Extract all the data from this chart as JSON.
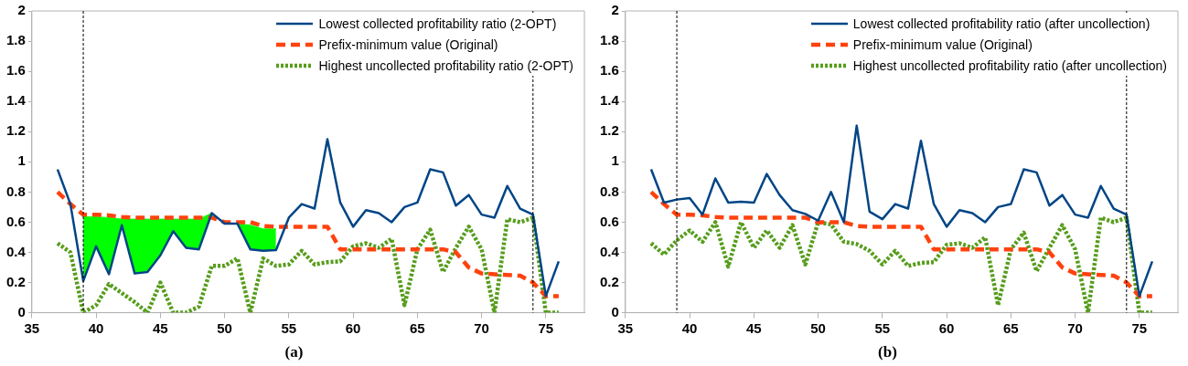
{
  "chart_data": [
    {
      "type": "line",
      "title": "(a)",
      "x": [
        37,
        38,
        39,
        40,
        41,
        42,
        43,
        44,
        45,
        46,
        47,
        48,
        49,
        50,
        51,
        52,
        53,
        54,
        55,
        56,
        57,
        58,
        59,
        60,
        61,
        62,
        63,
        64,
        65,
        66,
        67,
        68,
        69,
        70,
        71,
        72,
        73,
        74,
        75,
        76
      ],
      "xlim": [
        35,
        78
      ],
      "xticks": [
        35,
        40,
        45,
        50,
        55,
        60,
        65,
        70,
        75
      ],
      "ylim": [
        0,
        2
      ],
      "yticks": [
        0,
        0.2,
        0.4,
        0.6,
        0.8,
        1,
        1.2,
        1.4,
        1.6,
        1.8,
        2
      ],
      "grid": false,
      "legend": "top right",
      "marker": "none",
      "series": [
        {
          "type": "area",
          "color": "#00ff00",
          "x": [
            39,
            40,
            41,
            42,
            43,
            44,
            45,
            46,
            47,
            48,
            49,
            50,
            51,
            52,
            53,
            54
          ],
          "values": [
            0.635,
            0.635,
            0.63,
            0.62,
            0.62,
            0.62,
            0.62,
            0.62,
            0.62,
            0.62,
            0.66,
            null,
            0.59,
            0.58,
            0.555,
            0.555
          ]
        },
        {
          "name": "Lowest collected profitability ratio (2-OPT)",
          "color": "#004586",
          "line_style": "solid",
          "values": [
            0.95,
            0.72,
            0.21,
            0.44,
            0.255,
            0.58,
            0.26,
            0.27,
            0.38,
            0.54,
            0.43,
            0.42,
            0.66,
            0.59,
            0.59,
            0.42,
            0.41,
            0.415,
            0.63,
            0.72,
            0.69,
            1.15,
            0.73,
            0.57,
            0.68,
            0.66,
            0.6,
            0.7,
            0.73,
            0.95,
            0.93,
            0.71,
            0.78,
            0.65,
            0.63,
            0.84,
            0.69,
            0.65,
            0.11,
            0.34
          ]
        },
        {
          "name": "Prefix-minimum value (Original)",
          "color": "#ff420e",
          "line_style": "dashed",
          "values": [
            0.8,
            0.72,
            0.65,
            0.65,
            0.645,
            0.635,
            0.63,
            0.63,
            0.63,
            0.63,
            0.63,
            0.63,
            0.63,
            0.6,
            0.6,
            0.6,
            0.575,
            0.57,
            0.57,
            0.57,
            0.57,
            0.57,
            0.42,
            0.42,
            0.42,
            0.42,
            0.42,
            0.42,
            0.42,
            0.42,
            0.42,
            0.4,
            0.3,
            0.26,
            0.255,
            0.25,
            0.245,
            0.2,
            0.11,
            0.11
          ]
        },
        {
          "name": "Highest uncollected profitability ratio (2-OPT)",
          "color": "#579d1c",
          "line_style": "dotted",
          "values": [
            0.46,
            0.4,
            0,
            0.05,
            0.19,
            0.13,
            0.07,
            0,
            0.2,
            0,
            0,
            0.04,
            0.31,
            0.31,
            0.36,
            0,
            0.36,
            0.31,
            0.32,
            0.41,
            0.32,
            0.335,
            0.34,
            0.44,
            0.46,
            0.43,
            0.49,
            0.05,
            0.42,
            0.55,
            0.27,
            0.43,
            0.57,
            0.42,
            0,
            0.62,
            0.6,
            0.63,
            0,
            0
          ]
        }
      ],
      "ref_lines": [
        {
          "axis": "x",
          "value": 39,
          "color": "#000000",
          "line_style": "dotted"
        },
        {
          "axis": "x",
          "value": 74,
          "color": "#000000",
          "line_style": "dotted"
        }
      ]
    },
    {
      "type": "line",
      "title": "(b)",
      "x": [
        37,
        38,
        39,
        40,
        41,
        42,
        43,
        44,
        45,
        46,
        47,
        48,
        49,
        50,
        51,
        52,
        53,
        54,
        55,
        56,
        57,
        58,
        59,
        60,
        61,
        62,
        63,
        64,
        65,
        66,
        67,
        68,
        69,
        70,
        71,
        72,
        73,
        74,
        75,
        76
      ],
      "xlim": [
        35,
        78
      ],
      "xticks": [
        35,
        40,
        45,
        50,
        55,
        60,
        65,
        70,
        75
      ],
      "ylim": [
        0,
        2
      ],
      "yticks": [
        0,
        0.2,
        0.4,
        0.6,
        0.8,
        1,
        1.2,
        1.4,
        1.6,
        1.8,
        2
      ],
      "grid": false,
      "legend": "top right",
      "marker": "none",
      "series": [
        {
          "name": "Lowest collected profitability ratio (after uncollection)",
          "color": "#004586",
          "line_style": "solid",
          "values": [
            0.95,
            0.73,
            0.75,
            0.76,
            0.65,
            0.89,
            0.73,
            0.735,
            0.73,
            0.92,
            0.78,
            0.68,
            0.655,
            0.61,
            0.8,
            0.6,
            1.24,
            0.67,
            0.62,
            0.72,
            0.69,
            1.14,
            0.72,
            0.57,
            0.68,
            0.66,
            0.6,
            0.7,
            0.72,
            0.95,
            0.93,
            0.71,
            0.78,
            0.65,
            0.63,
            0.84,
            0.69,
            0.65,
            0.11,
            0.34
          ]
        },
        {
          "name": "Prefix-minimum value (Original)",
          "color": "#ff420e",
          "line_style": "dashed",
          "values": [
            0.8,
            0.72,
            0.65,
            0.65,
            0.645,
            0.635,
            0.63,
            0.63,
            0.63,
            0.63,
            0.63,
            0.63,
            0.63,
            0.6,
            0.6,
            0.6,
            0.575,
            0.57,
            0.57,
            0.57,
            0.57,
            0.57,
            0.42,
            0.42,
            0.42,
            0.42,
            0.42,
            0.42,
            0.42,
            0.42,
            0.42,
            0.4,
            0.3,
            0.26,
            0.255,
            0.25,
            0.245,
            0.2,
            0.11,
            0.11
          ]
        },
        {
          "name": "Highest uncollected profitability ratio (after uncollection)",
          "color": "#579d1c",
          "line_style": "dotted",
          "values": [
            0.46,
            0.385,
            0.48,
            0.545,
            0.47,
            0.6,
            0.305,
            0.6,
            0.43,
            0.545,
            0.43,
            0.58,
            0.32,
            0.6,
            0.585,
            0.47,
            0.455,
            0.41,
            0.32,
            0.41,
            0.31,
            0.33,
            0.335,
            0.45,
            0.46,
            0.43,
            0.5,
            0.05,
            0.42,
            0.53,
            0.275,
            0.43,
            0.58,
            0.42,
            0,
            0.63,
            0.6,
            0.63,
            0,
            0
          ]
        }
      ],
      "ref_lines": [
        {
          "axis": "x",
          "value": 39,
          "color": "#000000",
          "line_style": "dotted"
        },
        {
          "axis": "x",
          "value": 74,
          "color": "#000000",
          "line_style": "dotted"
        }
      ]
    }
  ]
}
